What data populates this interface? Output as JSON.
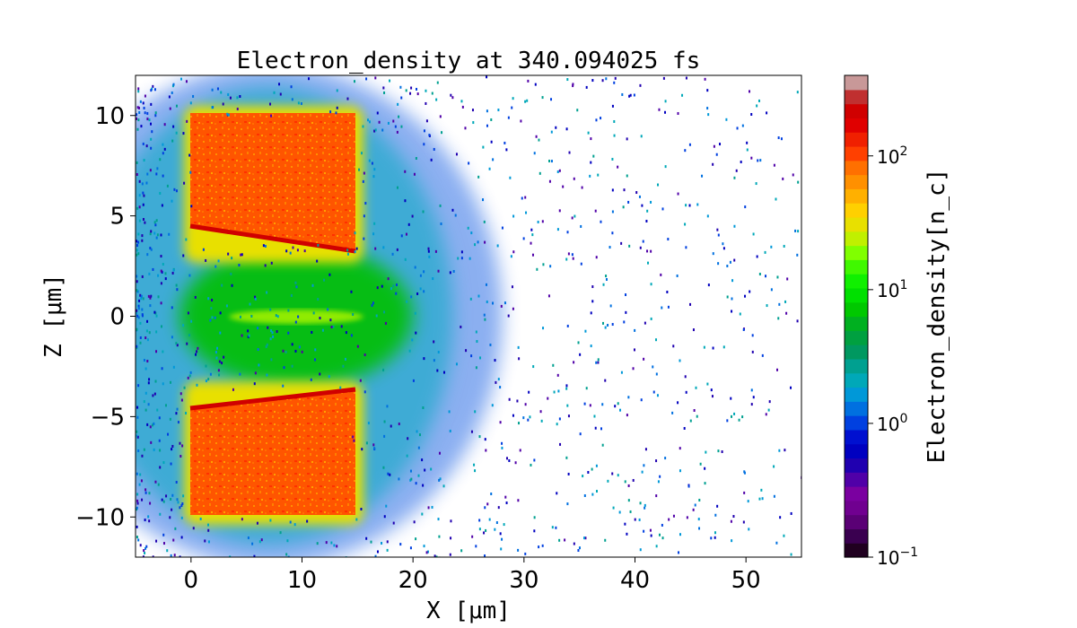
{
  "chart_data": {
    "type": "heatmap",
    "title": "Electron_density at 340.094025 fs",
    "xlabel": "X [μm]",
    "ylabel": "Z [μm]",
    "xlim": [
      -5,
      55
    ],
    "ylim": [
      -12,
      12
    ],
    "xticks": [
      0,
      10,
      20,
      30,
      40,
      50
    ],
    "xtick_labels": [
      "0",
      "10",
      "20",
      "30",
      "40",
      "50"
    ],
    "yticks": [
      -10,
      -5,
      0,
      5,
      10
    ],
    "ytick_labels": [
      "−10",
      "−5",
      "0",
      "5",
      "10"
    ],
    "colorbar": {
      "label": "Electron_density[n_c]",
      "scale": "log",
      "range": [
        0.1,
        400
      ],
      "ticks": [
        {
          "value": 0.1,
          "base": "10",
          "exp": "−1"
        },
        {
          "value": 1,
          "base": "10",
          "exp": "0"
        },
        {
          "value": 10,
          "base": "10",
          "exp": "1"
        },
        {
          "value": 100,
          "base": "10",
          "exp": "2"
        }
      ],
      "colors": [
        "#200020",
        "#3a0050",
        "#5a0075",
        "#700090",
        "#7a00a0",
        "#5000a8",
        "#2000b0",
        "#0000c0",
        "#0010d0",
        "#0040e0",
        "#0070e0",
        "#0098d8",
        "#00a8b8",
        "#00a090",
        "#009860",
        "#00a040",
        "#00b020",
        "#00c800",
        "#00e000",
        "#10f000",
        "#40f800",
        "#80ff00",
        "#c0f000",
        "#e8e000",
        "#ffd000",
        "#ffb000",
        "#ff9000",
        "#ff7000",
        "#ff4000",
        "#f02000",
        "#e00000",
        "#d00000",
        "#c03030",
        "#c89898"
      ]
    },
    "regions": [
      {
        "name": "upper-target-slab",
        "x": [
          0,
          14.5
        ],
        "z": [
          3.5,
          10
        ],
        "level": 60
      },
      {
        "name": "lower-target-slab",
        "x": [
          0,
          14.5
        ],
        "z": [
          -10,
          -3.8
        ],
        "level": 60
      },
      {
        "name": "channel-plasma",
        "x": [
          2,
          20
        ],
        "z": [
          -3.5,
          3.5
        ],
        "level": 8
      }
    ],
    "grid": false
  }
}
